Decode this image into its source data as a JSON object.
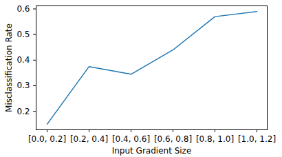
{
  "chart_data": {
    "type": "line",
    "x_label": "Input Gradient Size",
    "y_label": "Misclassification Rate",
    "categories": [
      "[0.0, 0.2]",
      "[0.2, 0.4]",
      "[0.4, 0.6]",
      "[0.6, 0.8]",
      "[0.8, 1.0]",
      "[1.0, 1.2]"
    ],
    "values": [
      0.15,
      0.375,
      0.345,
      0.44,
      0.57,
      0.59
    ],
    "color": "#1f77b4",
    "ylim": [
      0.128,
      0.612
    ],
    "yticks": [
      0.2,
      0.3,
      0.4,
      0.5,
      0.6
    ],
    "grid": false
  }
}
